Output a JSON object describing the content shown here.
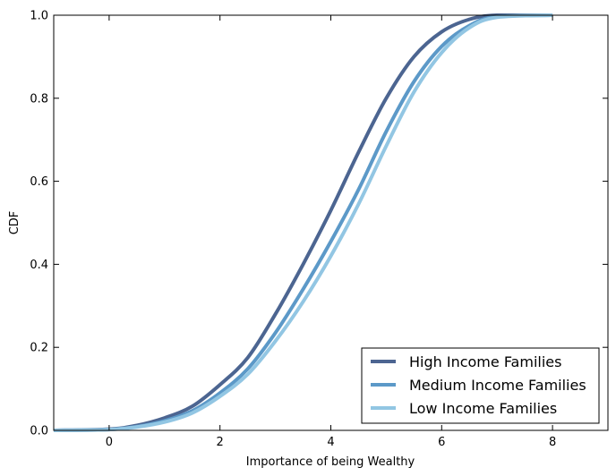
{
  "chart_data": {
    "type": "line",
    "xlabel": "Importance of being Wealthy",
    "ylabel": "CDF",
    "xlim": [
      -1,
      9
    ],
    "ylim": [
      0,
      1
    ],
    "x_ticks": [
      "0",
      "2",
      "4",
      "6",
      "8"
    ],
    "y_ticks": [
      "0.0",
      "0.2",
      "0.4",
      "0.6",
      "0.8",
      "1.0"
    ],
    "grid": false,
    "legend_position": "lower-right",
    "series": [
      {
        "name": "High Income Families",
        "color": "#4c6591",
        "x": [
          -1,
          0,
          0.5,
          1,
          1.5,
          2,
          2.5,
          3,
          3.5,
          4,
          4.5,
          5,
          5.5,
          6,
          6.5,
          7,
          8
        ],
        "y": [
          0.0,
          0.003,
          0.012,
          0.03,
          0.058,
          0.11,
          0.175,
          0.28,
          0.4,
          0.53,
          0.67,
          0.8,
          0.9,
          0.96,
          0.99,
          1.0,
          1.0
        ]
      },
      {
        "name": "Medium Income Families",
        "color": "#5c99c8",
        "x": [
          -1,
          0,
          0.5,
          1,
          1.5,
          2,
          2.5,
          3,
          3.5,
          4,
          4.5,
          5,
          5.5,
          6,
          6.5,
          7,
          8
        ],
        "y": [
          0.0,
          0.002,
          0.009,
          0.023,
          0.047,
          0.09,
          0.148,
          0.235,
          0.34,
          0.455,
          0.58,
          0.72,
          0.84,
          0.925,
          0.975,
          0.997,
          1.0
        ]
      },
      {
        "name": "Low Income Families",
        "color": "#92c6e3",
        "x": [
          -1,
          0,
          0.5,
          1,
          1.5,
          2,
          2.5,
          3,
          3.5,
          4,
          4.5,
          5,
          5.5,
          6,
          6.5,
          7,
          8
        ],
        "y": [
          0.0,
          0.002,
          0.008,
          0.02,
          0.042,
          0.082,
          0.135,
          0.215,
          0.31,
          0.42,
          0.545,
          0.685,
          0.815,
          0.91,
          0.97,
          0.995,
          1.0
        ]
      }
    ]
  }
}
